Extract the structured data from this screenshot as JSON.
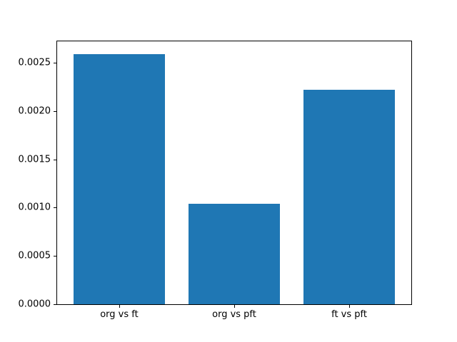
{
  "figure": {
    "background": "#ffffff",
    "text_color": "#000000",
    "spine_color": "#000000"
  },
  "chart_data": {
    "type": "bar",
    "title": "",
    "xlabel": "",
    "ylabel": "",
    "categories": [
      "org vs ft",
      "org vs pft",
      "ft vs pft"
    ],
    "values": [
      0.00259,
      0.00104,
      0.00222
    ],
    "bar_color": "#1f77b4",
    "bar_width": 0.8,
    "xlim": [
      -0.54,
      2.54
    ],
    "ylim": [
      0,
      0.00272
    ],
    "yticks": [
      0.0,
      0.0005,
      0.001,
      0.0015,
      0.002,
      0.0025
    ],
    "ytick_labels": [
      "0.0000",
      "0.0005",
      "0.0010",
      "0.0015",
      "0.0020",
      "0.0025"
    ],
    "grid": false,
    "legend": null
  }
}
